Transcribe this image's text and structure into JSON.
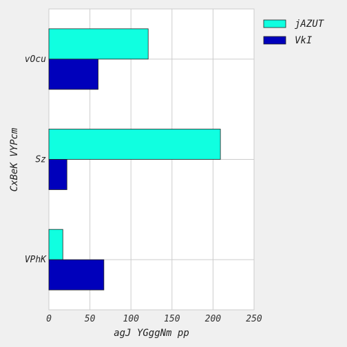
{
  "chart_data": {
    "type": "bar",
    "orientation": "horizontal",
    "categories": [
      "vOcu",
      "Sz",
      "VPhK"
    ],
    "series": [
      {
        "name": "jAZUT",
        "color": "#10ffe0",
        "values": [
          121,
          209,
          17
        ]
      },
      {
        "name": "VkI",
        "color": "#0000bb",
        "values": [
          60,
          22,
          67
        ]
      }
    ],
    "xlabel": "agJ YGggNm pp",
    "ylabel": "CxBeK VYPcm",
    "xlim": [
      0,
      250
    ],
    "xticks": [
      0,
      50,
      100,
      150,
      200,
      250
    ],
    "grid": true,
    "legend_position": "top-right"
  }
}
